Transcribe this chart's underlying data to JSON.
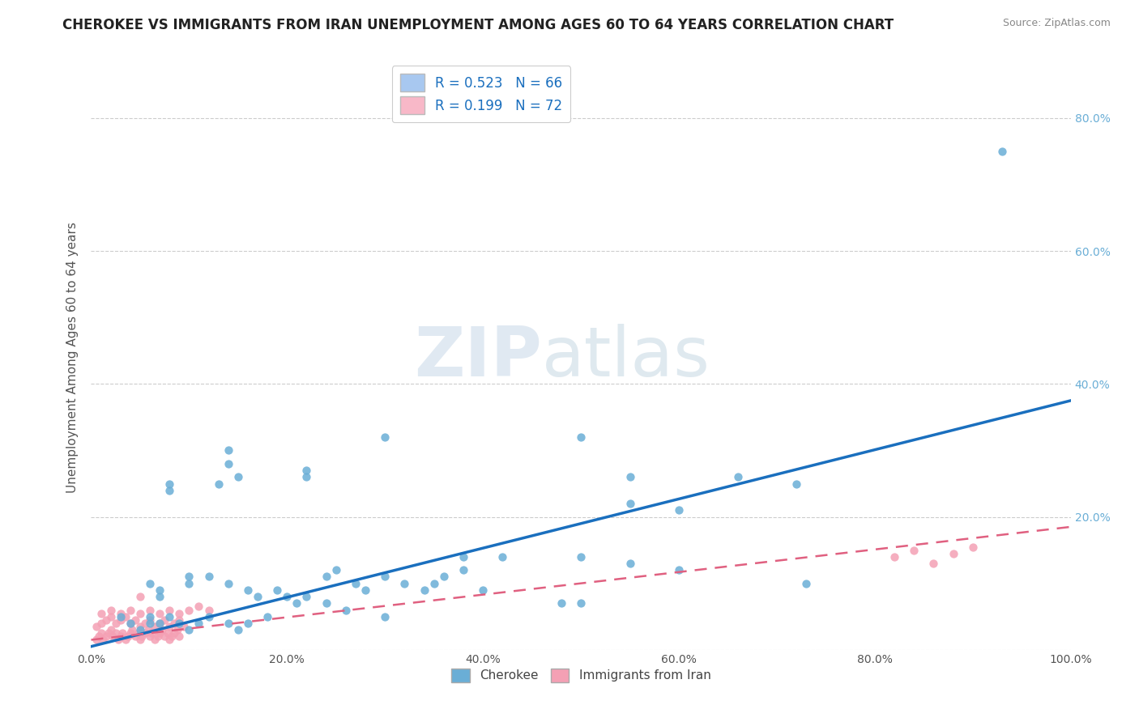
{
  "title": "CHEROKEE VS IMMIGRANTS FROM IRAN UNEMPLOYMENT AMONG AGES 60 TO 64 YEARS CORRELATION CHART",
  "source": "Source: ZipAtlas.com",
  "ylabel": "Unemployment Among Ages 60 to 64 years",
  "xlim": [
    0,
    1.0
  ],
  "ylim": [
    0,
    0.88
  ],
  "xticks": [
    0.0,
    0.2,
    0.4,
    0.6,
    0.8,
    1.0
  ],
  "xticklabels": [
    "0.0%",
    "20.0%",
    "40.0%",
    "60.0%",
    "80.0%",
    "100.0%"
  ],
  "yticks_right": [
    0.2,
    0.4,
    0.6,
    0.8
  ],
  "yticklabels_right": [
    "20.0%",
    "40.0%",
    "60.0%",
    "80.0%"
  ],
  "legend_labels": [
    "R = 0.523   N = 66",
    "R = 0.199   N = 72"
  ],
  "legend_colors": [
    "#a8c8f0",
    "#f8b8c8"
  ],
  "cherokee_color": "#6aaed6",
  "iran_color": "#f4a0b4",
  "blue_line_color": "#1a6fbe",
  "pink_line_color": "#e06080",
  "watermark_zip": "ZIP",
  "watermark_atlas": "atlas",
  "title_fontsize": 12,
  "axis_label_fontsize": 11,
  "tick_fontsize": 10,
  "background_color": "#ffffff",
  "cherokee_x": [
    0.93,
    0.15,
    0.13,
    0.08,
    0.08,
    0.22,
    0.22,
    0.14,
    0.3,
    0.14,
    0.38,
    0.38,
    0.5,
    0.55,
    0.6,
    0.66,
    0.55,
    0.72,
    0.5,
    0.42,
    0.06,
    0.07,
    0.07,
    0.1,
    0.1,
    0.12,
    0.14,
    0.16,
    0.17,
    0.19,
    0.2,
    0.21,
    0.24,
    0.25,
    0.27,
    0.28,
    0.3,
    0.32,
    0.34,
    0.36,
    0.03,
    0.04,
    0.05,
    0.06,
    0.06,
    0.07,
    0.08,
    0.09,
    0.1,
    0.11,
    0.12,
    0.14,
    0.15,
    0.16,
    0.18,
    0.22,
    0.24,
    0.26,
    0.3,
    0.35,
    0.4,
    0.5,
    0.55,
    0.6,
    0.73,
    0.48
  ],
  "cherokee_y": [
    0.75,
    0.26,
    0.25,
    0.25,
    0.24,
    0.27,
    0.26,
    0.28,
    0.32,
    0.3,
    0.14,
    0.12,
    0.32,
    0.22,
    0.21,
    0.26,
    0.26,
    0.25,
    0.07,
    0.14,
    0.1,
    0.08,
    0.09,
    0.11,
    0.1,
    0.11,
    0.1,
    0.09,
    0.08,
    0.09,
    0.08,
    0.07,
    0.11,
    0.12,
    0.1,
    0.09,
    0.11,
    0.1,
    0.09,
    0.11,
    0.05,
    0.04,
    0.03,
    0.04,
    0.05,
    0.04,
    0.05,
    0.04,
    0.03,
    0.04,
    0.05,
    0.04,
    0.03,
    0.04,
    0.05,
    0.08,
    0.07,
    0.06,
    0.05,
    0.1,
    0.09,
    0.14,
    0.13,
    0.12,
    0.1,
    0.07
  ],
  "iran_x": [
    0.005,
    0.008,
    0.01,
    0.012,
    0.015,
    0.018,
    0.02,
    0.022,
    0.025,
    0.028,
    0.03,
    0.032,
    0.035,
    0.038,
    0.04,
    0.042,
    0.045,
    0.048,
    0.05,
    0.052,
    0.055,
    0.058,
    0.06,
    0.062,
    0.065,
    0.068,
    0.07,
    0.072,
    0.075,
    0.078,
    0.08,
    0.082,
    0.085,
    0.088,
    0.09,
    0.005,
    0.01,
    0.015,
    0.02,
    0.025,
    0.03,
    0.035,
    0.04,
    0.045,
    0.05,
    0.055,
    0.06,
    0.065,
    0.07,
    0.075,
    0.08,
    0.085,
    0.09,
    0.095,
    0.01,
    0.02,
    0.03,
    0.04,
    0.05,
    0.06,
    0.07,
    0.08,
    0.09,
    0.1,
    0.11,
    0.12,
    0.82,
    0.84,
    0.86,
    0.88,
    0.9,
    0.05
  ],
  "iran_y": [
    0.015,
    0.02,
    0.025,
    0.015,
    0.02,
    0.025,
    0.03,
    0.02,
    0.025,
    0.015,
    0.02,
    0.025,
    0.015,
    0.02,
    0.025,
    0.03,
    0.02,
    0.025,
    0.015,
    0.02,
    0.025,
    0.03,
    0.02,
    0.025,
    0.015,
    0.02,
    0.025,
    0.03,
    0.02,
    0.025,
    0.015,
    0.02,
    0.025,
    0.03,
    0.02,
    0.035,
    0.04,
    0.045,
    0.05,
    0.04,
    0.045,
    0.05,
    0.04,
    0.045,
    0.035,
    0.04,
    0.045,
    0.035,
    0.04,
    0.045,
    0.035,
    0.04,
    0.045,
    0.035,
    0.055,
    0.06,
    0.055,
    0.06,
    0.055,
    0.06,
    0.055,
    0.06,
    0.055,
    0.06,
    0.065,
    0.06,
    0.14,
    0.15,
    0.13,
    0.145,
    0.155,
    0.08
  ],
  "blue_line_x": [
    0.0,
    1.0
  ],
  "blue_line_y": [
    0.005,
    0.375
  ],
  "pink_line_x": [
    0.0,
    1.0
  ],
  "pink_line_y": [
    0.015,
    0.185
  ],
  "grid_color": "#cccccc",
  "grid_linestyle": "--",
  "right_tick_color": "#6aaed6"
}
